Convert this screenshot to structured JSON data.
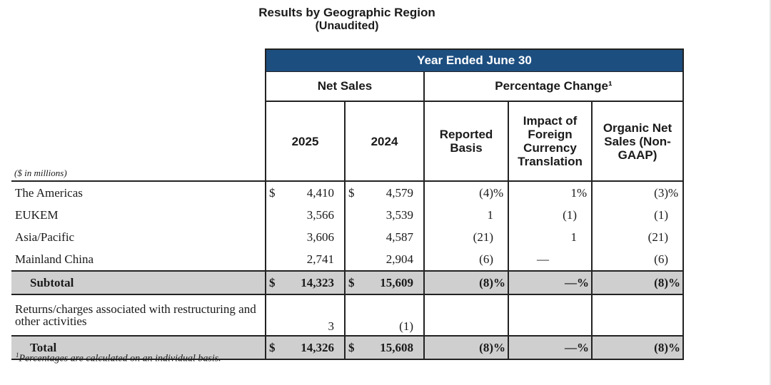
{
  "title": {
    "line1": "Results by Geographic Region",
    "line2": "(Unaudited)"
  },
  "header": {
    "band": "Year Ended June 30",
    "group_net_sales": "Net Sales",
    "group_pct_change": "Percentage Change¹",
    "units": "($ in millions)",
    "col_2025": "2025",
    "col_2024": "2024",
    "col_reported": "Reported Basis",
    "col_impact": "Impact of Foreign Currency Translation",
    "col_organic": "Organic Net Sales (Non-GAAP)"
  },
  "rows": [
    {
      "label": "The Americas",
      "cur25": "$",
      "v2025": "4,410",
      "cur24": "$",
      "v2024": "4,579",
      "reported": "(4)",
      "reported_sfx": "%",
      "impact": "1",
      "impact_sfx": "%",
      "organic": "(3)",
      "organic_sfx": "%"
    },
    {
      "label": "EUKEM",
      "cur25": "",
      "v2025": "3,566",
      "cur24": "",
      "v2024": "3,539",
      "reported": "1",
      "reported_sfx": "",
      "impact": "(1)",
      "impact_sfx": "",
      "organic": "(1)",
      "organic_sfx": ""
    },
    {
      "label": "Asia/Pacific",
      "cur25": "",
      "v2025": "3,606",
      "cur24": "",
      "v2024": "4,587",
      "reported": "(21)",
      "reported_sfx": "",
      "impact": "1",
      "impact_sfx": "",
      "organic": "(21)",
      "organic_sfx": ""
    },
    {
      "label": "Mainland China",
      "cur25": "",
      "v2025": "2,741",
      "cur24": "",
      "v2024": "2,904",
      "reported": "(6)",
      "reported_sfx": "",
      "impact": "—",
      "impact_sfx": "",
      "organic": "(6)",
      "organic_sfx": ""
    }
  ],
  "subtotal": {
    "label": "Subtotal",
    "cur25": "$",
    "v2025": "14,323",
    "cur24": "$",
    "v2024": "15,609",
    "reported": "(8)",
    "reported_sfx": "%",
    "impact": "—",
    "impact_sfx": "%",
    "organic": "(8)",
    "organic_sfx": "%"
  },
  "returns": {
    "label": "Returns/charges associated with restructuring and other activities",
    "v2025": "3",
    "v2024": "(1)"
  },
  "total": {
    "label": "Total",
    "cur25": "$",
    "v2025": "14,326",
    "cur24": "$",
    "v2024": "15,608",
    "reported": "(8)",
    "reported_sfx": "%",
    "impact": "—",
    "impact_sfx": "%",
    "organic": "(8)",
    "organic_sfx": "%"
  },
  "footnote": {
    "mark": "1",
    "text": "Percentages are calculated on an individual basis."
  }
}
